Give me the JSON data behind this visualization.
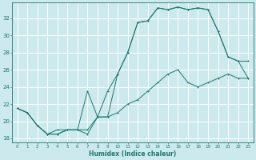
{
  "xlabel": "Humidex (Indice chaleur)",
  "bg_color": "#cce9ed",
  "line_color": "#1a7a6e",
  "grid_color": "#ffffff",
  "xlim": [
    -0.5,
    23.5
  ],
  "ylim": [
    17.5,
    33.8
  ],
  "yticks": [
    18,
    20,
    22,
    24,
    26,
    28,
    30,
    32
  ],
  "xticks": [
    0,
    1,
    2,
    3,
    4,
    5,
    6,
    7,
    8,
    9,
    10,
    11,
    12,
    13,
    14,
    15,
    16,
    17,
    18,
    19,
    20,
    21,
    22,
    23
  ],
  "series1": {
    "x": [
      0,
      1,
      2,
      3,
      4,
      5,
      6,
      7,
      8,
      9,
      10,
      11,
      12,
      13,
      14,
      15,
      16,
      17,
      18,
      19,
      20,
      21,
      22,
      23
    ],
    "y": [
      21.5,
      21.0,
      19.5,
      18.5,
      18.5,
      19.0,
      19.0,
      18.5,
      20.5,
      23.5,
      25.5,
      28.0,
      31.5,
      31.7,
      33.2,
      33.0,
      33.3,
      33.0,
      33.2,
      33.0,
      30.5,
      27.5,
      27.0,
      27.0
    ]
  },
  "series2": {
    "x": [
      0,
      1,
      2,
      3,
      4,
      5,
      6,
      7,
      8,
      9,
      10,
      11,
      12,
      13,
      14,
      15,
      16,
      17,
      18,
      19,
      20,
      21,
      22,
      23
    ],
    "y": [
      21.5,
      21.0,
      19.5,
      18.5,
      18.5,
      19.0,
      19.0,
      23.5,
      20.5,
      20.5,
      25.5,
      28.0,
      31.5,
      31.7,
      33.2,
      33.0,
      33.3,
      33.0,
      33.2,
      33.0,
      30.5,
      27.5,
      27.0,
      25.0
    ]
  },
  "series3": {
    "x": [
      0,
      1,
      2,
      3,
      4,
      5,
      6,
      7,
      8,
      9,
      10,
      11,
      12,
      13,
      14,
      15,
      16,
      17,
      18,
      19,
      20,
      21,
      22,
      23
    ],
    "y": [
      21.5,
      21.0,
      19.5,
      18.5,
      19.0,
      19.0,
      19.0,
      19.0,
      20.5,
      20.5,
      21.0,
      22.0,
      22.5,
      23.5,
      24.5,
      25.5,
      26.0,
      24.5,
      24.0,
      24.5,
      25.0,
      25.5,
      25.0,
      25.0
    ]
  }
}
